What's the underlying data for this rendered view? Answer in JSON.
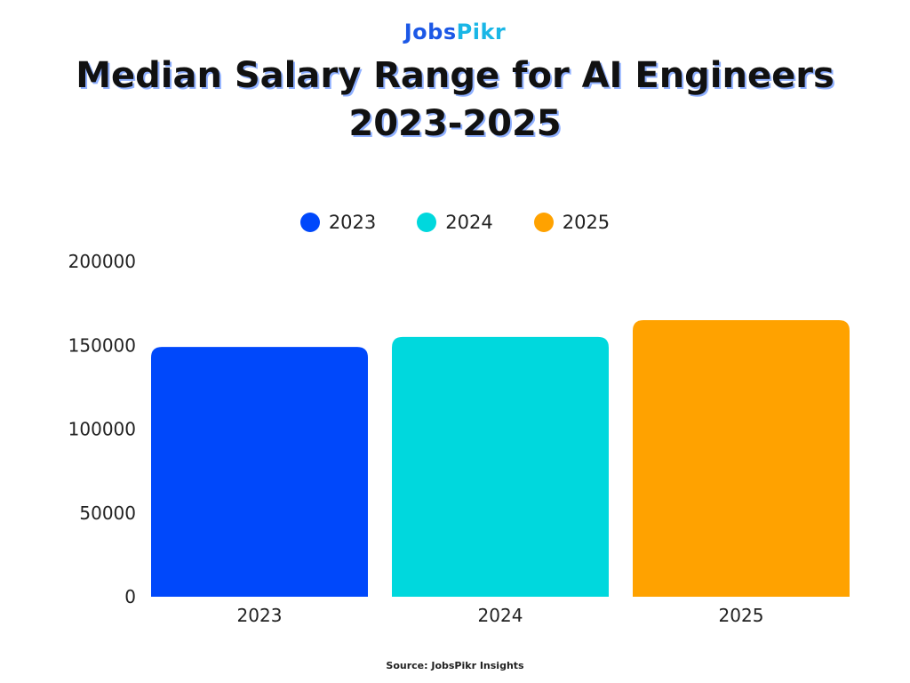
{
  "brand": {
    "logo_part_a": "Jobs",
    "logo_part_b": "Pikr"
  },
  "header": {
    "title_line1": "Median Salary Range for AI Engineers",
    "title_line2": "2023-2025"
  },
  "footer": {
    "source": "Source: JobsPikr Insights"
  },
  "colors": {
    "series_2023": "#0048fb",
    "series_2024": "#00d8dd",
    "series_2025": "#ffa200"
  },
  "chart_data": {
    "type": "bar",
    "title": "Median Salary Range for AI Engineers 2023-2025",
    "categories": [
      "2023",
      "2024",
      "2025"
    ],
    "values": [
      149000,
      155000,
      165000
    ],
    "legend": {
      "placement": "top-center",
      "entries": [
        {
          "label": "2023",
          "color": "#0048fb"
        },
        {
          "label": "2024",
          "color": "#00d8dd"
        },
        {
          "label": "2025",
          "color": "#ffa200"
        }
      ]
    },
    "ylim": [
      0,
      200000
    ],
    "yticks": [
      0,
      50000,
      100000,
      150000,
      200000
    ],
    "ytick_labels": [
      "0",
      "50000",
      "100000",
      "150000",
      "200000"
    ],
    "grid": false
  }
}
